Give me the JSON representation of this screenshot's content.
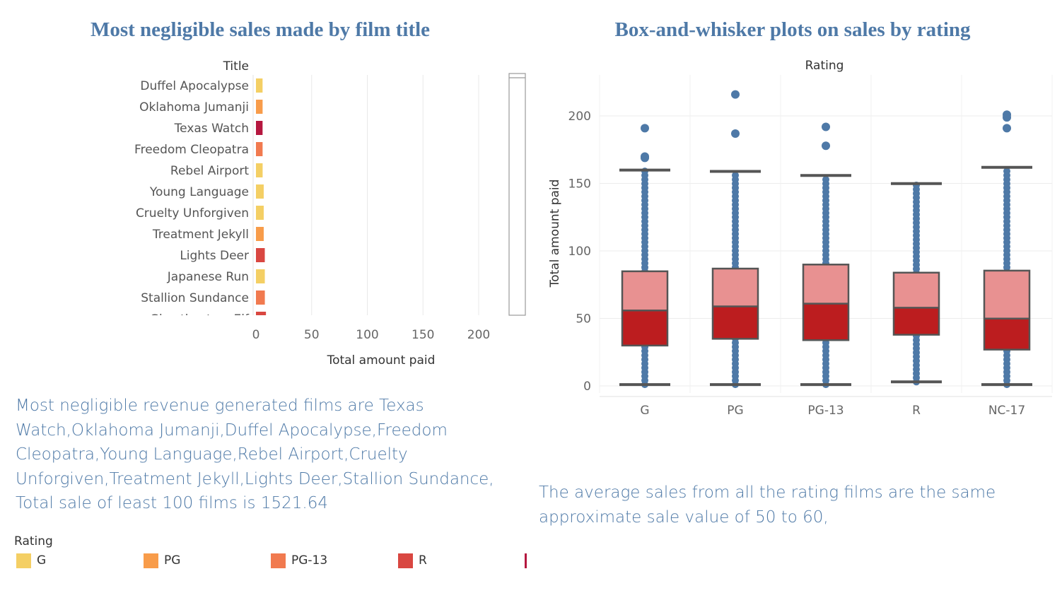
{
  "titles": {
    "left": "Most negligible sales made by film title",
    "right": "Box-and-whisker plots on sales by rating"
  },
  "colors": {
    "G": "#f4cf64",
    "PG": "#f89c4a",
    "PG-13": "#f17a4f",
    "R": "#d94741",
    "NC-17": "#b5173f",
    "accent_text": "#4e79a7",
    "box_upper": "#e89191",
    "box_lower": "#bc1d1f",
    "points": "#4e79a7",
    "whisker": "#555555"
  },
  "chart_data": [
    {
      "type": "bar",
      "orientation": "horizontal",
      "title": "Most negligible sales made by film title",
      "row_header": "Title",
      "xlabel": "Total amount paid",
      "xlim": [
        0,
        240
      ],
      "xticks": [
        0,
        50,
        100,
        150,
        200
      ],
      "grid": true,
      "categories": [
        "Duffel Apocalypse",
        "Oklahoma Jumanji",
        "Texas Watch",
        "Freedom Cleopatra",
        "Rebel Airport",
        "Young Language",
        "Cruelty Unforgiven",
        "Treatment Jekyll",
        "Lights Deer",
        "Japanese Run",
        "Stallion Sundance",
        "Ghostbusters Elf"
      ],
      "values": [
        5.94,
        5.97,
        5.94,
        5.96,
        5.99,
        6.96,
        6.97,
        6.97,
        7.93,
        7.96,
        7.98,
        8.97
      ],
      "ratings": [
        "G",
        "PG",
        "NC-17",
        "PG-13",
        "G",
        "G",
        "G",
        "PG",
        "R",
        "G",
        "PG-13",
        "R"
      ]
    },
    {
      "type": "box",
      "title": "Box-and-whisker plots on sales by rating",
      "column_header": "Rating",
      "ylabel": "Total amount paid",
      "ylim": [
        -5,
        230
      ],
      "yticks": [
        0,
        50,
        100,
        150,
        200
      ],
      "grid": true,
      "categories": [
        "G",
        "PG",
        "PG-13",
        "R",
        "NC-17"
      ],
      "boxes": [
        {
          "rating": "G",
          "min": 0.99,
          "q1": 29.9,
          "median": 55.9,
          "q3": 84.9,
          "max": 159.9,
          "outliers": [
            168.9,
            169.9,
            190.9
          ]
        },
        {
          "rating": "PG",
          "min": 0.99,
          "q1": 34.9,
          "median": 58.9,
          "q3": 86.9,
          "max": 158.9,
          "outliers": [
            186.9,
            215.9
          ]
        },
        {
          "rating": "PG-13",
          "min": 0.99,
          "q1": 33.9,
          "median": 60.9,
          "q3": 89.9,
          "max": 155.9,
          "outliers": [
            177.9,
            191.9
          ]
        },
        {
          "rating": "R",
          "min": 2.99,
          "q1": 37.9,
          "median": 57.9,
          "q3": 83.9,
          "max": 149.9,
          "outliers": []
        },
        {
          "rating": "NC-17",
          "min": 0.99,
          "q1": 26.9,
          "median": 49.9,
          "q3": 85.4,
          "max": 161.9,
          "outliers": [
            190.9,
            198.9,
            200.9
          ]
        }
      ]
    }
  ],
  "notes": {
    "left": "Most negligible revenue generated films are Texas Watch,Oklahoma Jumanji,Duffel Apocalypse,Freedom Cleopatra,Young Language,Rebel Airport,Cruelty Unforgiven,Treatment Jekyll,Lights Deer,Stallion Sundance, Total sale of least 100 films is 1521.64",
    "right": "The average sales from all the rating films are the same approximate sale value of 50 to 60,"
  },
  "legend": {
    "title": "Rating",
    "items": [
      {
        "label": "G",
        "color": "#f4cf64"
      },
      {
        "label": "PG",
        "color": "#f89c4a"
      },
      {
        "label": "PG-13",
        "color": "#f17a4f"
      },
      {
        "label": "R",
        "color": "#d94741"
      },
      {
        "label": "",
        "color": "#b5173f"
      }
    ]
  }
}
